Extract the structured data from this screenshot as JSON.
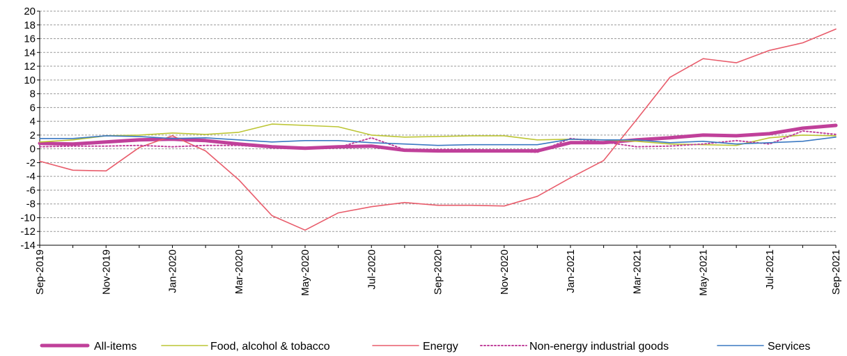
{
  "chart_data": {
    "type": "line",
    "title": "",
    "xlabel": "",
    "ylabel": "",
    "ylim": [
      -14,
      20
    ],
    "yticks": [
      -14,
      -12,
      -10,
      -8,
      -6,
      -4,
      -2,
      0,
      2,
      4,
      6,
      8,
      10,
      12,
      14,
      16,
      18,
      20
    ],
    "grid": "horizontal dashed",
    "legend_position": "bottom",
    "x": [
      "Sep-2019",
      "Oct-2019",
      "Nov-2019",
      "Dec-2019",
      "Jan-2020",
      "Feb-2020",
      "Mar-2020",
      "Apr-2020",
      "May-2020",
      "Jun-2020",
      "Jul-2020",
      "Aug-2020",
      "Sep-2020",
      "Oct-2020",
      "Nov-2020",
      "Dec-2020",
      "Jan-2021",
      "Feb-2021",
      "Mar-2021",
      "Apr-2021",
      "May-2021",
      "Jun-2021",
      "Jul-2021",
      "Aug-2021",
      "Sep-2021"
    ],
    "x_tick_labels": [
      "Sep-2019",
      "Nov-2019",
      "Jan-2020",
      "Mar-2020",
      "May-2020",
      "Jul-2020",
      "Sep-2020",
      "Nov-2020",
      "Jan-2021",
      "Mar-2021",
      "May-2021",
      "Jul-2021",
      "Sep-2021"
    ],
    "series": [
      {
        "name": "All-items",
        "color": "#c0409a",
        "style": "thick",
        "values": [
          0.8,
          0.7,
          1.0,
          1.3,
          1.4,
          1.2,
          0.7,
          0.3,
          0.1,
          0.3,
          0.4,
          -0.2,
          -0.3,
          -0.3,
          -0.3,
          -0.3,
          0.9,
          0.9,
          1.3,
          1.6,
          2.0,
          1.9,
          2.2,
          3.0,
          3.4
        ]
      },
      {
        "name": "Food, alcohol & tobacco",
        "color": "#bcc534",
        "style": "solid",
        "values": [
          1.0,
          1.3,
          1.9,
          2.0,
          2.3,
          2.1,
          2.4,
          3.6,
          3.4,
          3.2,
          2.0,
          1.7,
          1.8,
          1.9,
          1.9,
          1.3,
          1.4,
          1.3,
          1.1,
          0.7,
          0.6,
          0.5,
          1.6,
          2.0,
          1.9
        ]
      },
      {
        "name": "Energy",
        "color": "#e85c6b",
        "style": "solid",
        "values": [
          -1.8,
          -3.1,
          -3.2,
          0.2,
          1.9,
          -0.3,
          -4.5,
          -9.7,
          -11.8,
          -9.3,
          -8.4,
          -7.8,
          -8.2,
          -8.2,
          -8.3,
          -6.9,
          -4.2,
          -1.7,
          4.3,
          10.4,
          13.1,
          12.5,
          14.3,
          15.4,
          17.4
        ]
      },
      {
        "name": "Non-energy industrial goods",
        "color": "#c0409a",
        "style": "dotted",
        "values": [
          0.3,
          0.4,
          0.4,
          0.5,
          0.3,
          0.5,
          0.5,
          0.2,
          0.2,
          0.2,
          1.6,
          -0.1,
          -0.1,
          -0.1,
          -0.3,
          -0.5,
          1.5,
          1.0,
          0.3,
          0.4,
          0.7,
          1.2,
          0.7,
          2.6,
          2.1
        ]
      },
      {
        "name": "Services",
        "color": "#3a78c2",
        "style": "solid",
        "values": [
          1.5,
          1.5,
          1.9,
          1.8,
          1.5,
          1.6,
          1.3,
          1.0,
          1.2,
          1.2,
          0.9,
          0.7,
          0.5,
          0.6,
          0.6,
          0.6,
          1.4,
          1.3,
          1.3,
          0.9,
          1.1,
          0.7,
          0.9,
          1.1,
          1.7
        ]
      }
    ]
  }
}
